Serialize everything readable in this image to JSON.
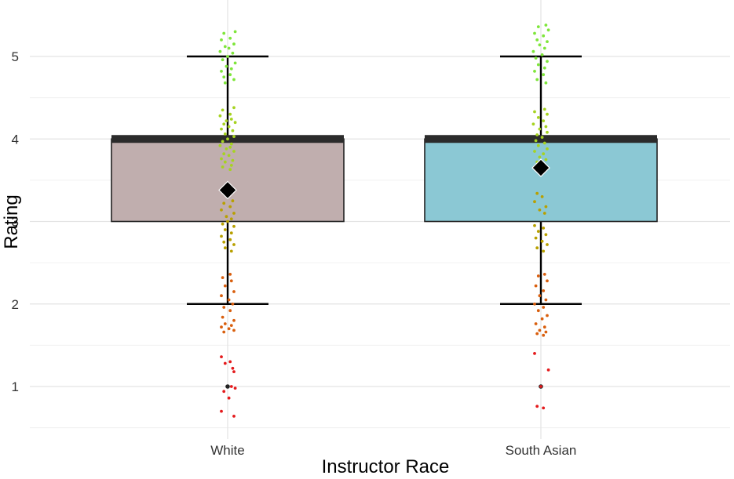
{
  "chart_data": {
    "type": "boxplot",
    "title": "",
    "xlabel": "Instructor Race",
    "ylabel": "Rating",
    "ylim": [
      0.55,
      5.5
    ],
    "y_ticks": [
      "1",
      "2",
      "3",
      "4",
      "5"
    ],
    "y_tick_values": [
      1,
      2,
      3,
      4,
      5
    ],
    "grid": true,
    "legend": "none",
    "categories": [
      "White",
      "South Asian"
    ],
    "boxes": [
      {
        "category": "White",
        "whisker_low": 2,
        "q1": 3,
        "median": 4,
        "q3": 4,
        "whisker_high": 5,
        "mean": 3.38,
        "outliers": [
          1
        ],
        "fill": "#c0aeae"
      },
      {
        "category": "South Asian",
        "whisker_low": 2,
        "q1": 3,
        "median": 4,
        "q3": 4,
        "whisker_high": 5,
        "mean": 3.65,
        "outliers": [
          1
        ],
        "fill": "#8bc8d4"
      }
    ],
    "point_colors": {
      "1": "#e41a1c",
      "2": "#d95f0e",
      "3": "#b8a000",
      "4": "#a6d320",
      "5": "#7ee63a"
    },
    "jitter": [
      {
        "category": "White",
        "points": [
          [
            5.3,
            0.06
          ],
          [
            5.28,
            -0.03
          ],
          [
            5.22,
            0.02
          ],
          [
            5.2,
            -0.05
          ],
          [
            5.15,
            0.05
          ],
          [
            5.12,
            -0.02
          ],
          [
            5.1,
            0.01
          ],
          [
            5.06,
            -0.06
          ],
          [
            5.04,
            0.04
          ],
          [
            5.0,
            0.0
          ],
          [
            4.96,
            -0.04
          ],
          [
            4.92,
            0.06
          ],
          [
            4.88,
            -0.01
          ],
          [
            4.85,
            0.03
          ],
          [
            4.82,
            -0.05
          ],
          [
            4.78,
            0.02
          ],
          [
            4.75,
            -0.03
          ],
          [
            4.72,
            0.05
          ],
          [
            4.68,
            -0.02
          ],
          [
            4.38,
            0.05
          ],
          [
            4.35,
            -0.04
          ],
          [
            4.3,
            0.02
          ],
          [
            4.28,
            -0.06
          ],
          [
            4.24,
            0.03
          ],
          [
            4.22,
            -0.01
          ],
          [
            4.2,
            0.06
          ],
          [
            4.18,
            -0.03
          ],
          [
            4.15,
            0.01
          ],
          [
            4.12,
            -0.05
          ],
          [
            4.1,
            0.04
          ],
          [
            4.06,
            -0.02
          ],
          [
            4.03,
            0.05
          ],
          [
            4.0,
            0.0
          ],
          [
            3.97,
            -0.04
          ],
          [
            3.94,
            0.03
          ],
          [
            3.92,
            -0.06
          ],
          [
            3.9,
            0.02
          ],
          [
            3.88,
            -0.01
          ],
          [
            3.85,
            0.05
          ],
          [
            3.82,
            -0.03
          ],
          [
            3.8,
            0.01
          ],
          [
            3.76,
            -0.05
          ],
          [
            3.74,
            0.04
          ],
          [
            3.72,
            -0.02
          ],
          [
            3.68,
            0.03
          ],
          [
            3.66,
            -0.04
          ],
          [
            3.63,
            0.02
          ],
          [
            3.25,
            0.04
          ],
          [
            3.22,
            -0.03
          ],
          [
            3.18,
            0.02
          ],
          [
            3.14,
            -0.05
          ],
          [
            3.1,
            0.05
          ],
          [
            3.06,
            -0.01
          ],
          [
            3.03,
            0.03
          ],
          [
            3.0,
            0.0
          ],
          [
            2.97,
            -0.04
          ],
          [
            2.94,
            0.05
          ],
          [
            2.9,
            -0.02
          ],
          [
            2.86,
            0.03
          ],
          [
            2.82,
            -0.05
          ],
          [
            2.78,
            0.02
          ],
          [
            2.75,
            -0.03
          ],
          [
            2.72,
            0.05
          ],
          [
            2.68,
            -0.02
          ],
          [
            2.64,
            0.03
          ],
          [
            2.36,
            0.02
          ],
          [
            2.32,
            -0.04
          ],
          [
            2.28,
            0.03
          ],
          [
            2.22,
            -0.02
          ],
          [
            2.15,
            0.05
          ],
          [
            2.1,
            -0.05
          ],
          [
            2.05,
            0.01
          ],
          [
            2.0,
            0.04
          ],
          [
            1.96,
            -0.03
          ],
          [
            1.92,
            0.02
          ],
          [
            1.84,
            -0.04
          ],
          [
            1.8,
            0.05
          ],
          [
            1.76,
            -0.02
          ],
          [
            1.74,
            0.03
          ],
          [
            1.72,
            -0.05
          ],
          [
            1.7,
            0.01
          ],
          [
            1.68,
            0.05
          ],
          [
            1.66,
            -0.03
          ],
          [
            1.36,
            -0.05
          ],
          [
            1.3,
            0.02
          ],
          [
            1.28,
            -0.02
          ],
          [
            1.22,
            0.04
          ],
          [
            1.18,
            0.05
          ],
          [
            1.0,
            0.03
          ],
          [
            0.98,
            0.06
          ],
          [
            0.94,
            -0.03
          ],
          [
            0.86,
            0.01
          ],
          [
            0.7,
            -0.05
          ],
          [
            0.64,
            0.05
          ]
        ]
      },
      {
        "category": "South Asian",
        "points": [
          [
            5.38,
            0.04
          ],
          [
            5.36,
            -0.02
          ],
          [
            5.32,
            0.06
          ],
          [
            5.28,
            -0.05
          ],
          [
            5.25,
            0.02
          ],
          [
            5.2,
            -0.03
          ],
          [
            5.18,
            0.05
          ],
          [
            5.14,
            -0.01
          ],
          [
            5.1,
            0.03
          ],
          [
            5.06,
            -0.06
          ],
          [
            5.02,
            0.01
          ],
          [
            4.98,
            -0.04
          ],
          [
            4.94,
            0.05
          ],
          [
            4.9,
            -0.02
          ],
          [
            4.86,
            0.03
          ],
          [
            4.82,
            -0.05
          ],
          [
            4.78,
            0.02
          ],
          [
            4.72,
            -0.03
          ],
          [
            4.68,
            0.04
          ],
          [
            4.36,
            0.03
          ],
          [
            4.33,
            -0.05
          ],
          [
            4.3,
            0.05
          ],
          [
            4.26,
            -0.02
          ],
          [
            4.22,
            0.02
          ],
          [
            4.18,
            -0.06
          ],
          [
            4.15,
            0.04
          ],
          [
            4.12,
            -0.01
          ],
          [
            4.08,
            0.05
          ],
          [
            4.05,
            -0.03
          ],
          [
            4.02,
            0.01
          ],
          [
            3.98,
            -0.04
          ],
          [
            3.95,
            0.03
          ],
          [
            3.92,
            -0.02
          ],
          [
            3.88,
            0.05
          ],
          [
            3.85,
            -0.05
          ],
          [
            3.82,
            0.02
          ],
          [
            3.78,
            -0.01
          ],
          [
            3.75,
            0.04
          ],
          [
            3.72,
            -0.03
          ],
          [
            3.34,
            -0.03
          ],
          [
            3.3,
            0.01
          ],
          [
            3.24,
            -0.05
          ],
          [
            3.18,
            0.04
          ],
          [
            3.14,
            -0.01
          ],
          [
            3.1,
            0.03
          ],
          [
            2.95,
            -0.05
          ],
          [
            2.92,
            0.02
          ],
          [
            2.88,
            -0.02
          ],
          [
            2.84,
            0.04
          ],
          [
            2.8,
            -0.04
          ],
          [
            2.76,
            0.01
          ],
          [
            2.72,
            0.05
          ],
          [
            2.68,
            -0.03
          ],
          [
            2.64,
            0.02
          ],
          [
            2.36,
            0.03
          ],
          [
            2.34,
            -0.02
          ],
          [
            2.28,
            0.05
          ],
          [
            2.22,
            -0.04
          ],
          [
            2.16,
            0.02
          ],
          [
            2.1,
            -0.01
          ],
          [
            2.05,
            0.04
          ],
          [
            2.0,
            -0.05
          ],
          [
            1.96,
            0.02
          ],
          [
            1.92,
            -0.02
          ],
          [
            1.86,
            0.05
          ],
          [
            1.82,
            0.01
          ],
          [
            1.76,
            -0.04
          ],
          [
            1.72,
            0.03
          ],
          [
            1.68,
            -0.01
          ],
          [
            1.66,
            0.04
          ],
          [
            1.64,
            -0.03
          ],
          [
            1.62,
            0.02
          ],
          [
            1.4,
            -0.05
          ],
          [
            1.2,
            0.06
          ],
          [
            1.0,
            0.0
          ],
          [
            0.76,
            -0.03
          ],
          [
            0.74,
            0.02
          ]
        ]
      }
    ]
  }
}
